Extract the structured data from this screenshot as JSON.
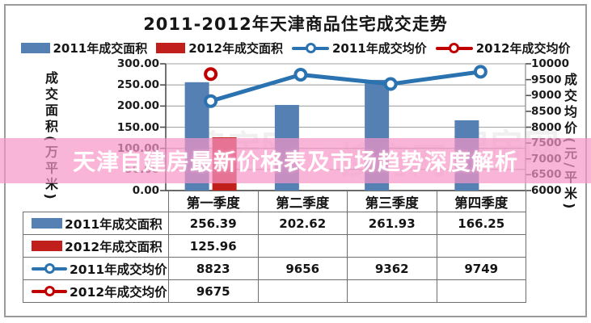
{
  "banner": {
    "text": "天津自建房最新价格表及市场趋势深度解析",
    "bg_color": "rgba(246,149,199,0.70)",
    "text_color": "#ffffff"
  },
  "chart_data": {
    "type": "combo-bar-line",
    "title": "2011-2012年天津商品住宅成交走势",
    "categories": [
      "第一季度",
      "第二季度",
      "第三季度",
      "第四季度"
    ],
    "series": [
      {
        "name": "2011年成交面积",
        "chart": "bar",
        "axis": "left",
        "color": "#5580b4",
        "values": [
          256.39,
          202.62,
          261.93,
          166.25
        ]
      },
      {
        "name": "2012年成交面积",
        "chart": "bar",
        "axis": "left",
        "color": "#c01f1c",
        "values": [
          125.96,
          null,
          null,
          null
        ]
      },
      {
        "name": "2011年成交均价",
        "chart": "line",
        "axis": "right",
        "color": "#2a72b0",
        "values": [
          8823,
          9656,
          9362,
          9749
        ]
      },
      {
        "name": "2012年成交均价",
        "chart": "line",
        "axis": "right",
        "color": "#c00000",
        "values": [
          9675,
          null,
          null,
          null
        ]
      }
    ],
    "left_axis": {
      "title": "成交面积(万平米)",
      "min": 0,
      "max": 300,
      "tick_labels": [
        "300.00",
        "250.00",
        "200.00",
        "150.00",
        "100.00",
        "50.00",
        "0.00"
      ]
    },
    "right_axis": {
      "title": "成交均价(元/平米)",
      "min": 6000,
      "max": 10000,
      "tick_labels": [
        "10000",
        "9500",
        "9000",
        "8500",
        "8000",
        "7500",
        "7000",
        "6500",
        "6000"
      ]
    },
    "grid": true,
    "legend_position": "top"
  },
  "table": {
    "col_headers": [
      "第一季度",
      "第二季度",
      "第三季度",
      "第四季度"
    ],
    "rows": [
      {
        "label": "2011年成交面积",
        "values": [
          "256.39",
          "202.62",
          "261.93",
          "166.25"
        ]
      },
      {
        "label": "2012年成交面积",
        "values": [
          "125.96",
          "",
          "",
          ""
        ]
      },
      {
        "label": "2011年成交均价",
        "values": [
          "8823",
          "9656",
          "9362",
          "9749"
        ]
      },
      {
        "label": "2012年成交均价",
        "values": [
          "9675",
          "",
          "",
          ""
        ]
      }
    ]
  },
  "watermark": {
    "text": "搜房网"
  }
}
